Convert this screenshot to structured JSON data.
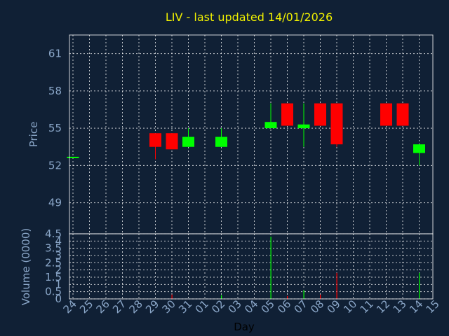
{
  "chart_data": {
    "type": "candlestick",
    "title": "LIV - last updated 14/01/2026",
    "xlabel": "Day",
    "x_ticks": [
      "24",
      "25",
      "26",
      "27",
      "28",
      "29",
      "30",
      "31",
      "01",
      "02",
      "03",
      "04",
      "05",
      "06",
      "07",
      "08",
      "09",
      "10",
      "11",
      "12",
      "13",
      "14",
      "15"
    ],
    "colors": {
      "up": "#00ff00",
      "down": "#ff0000",
      "background": "#102035",
      "title": "#f0f000",
      "axis_text": "#8aa6c8"
    },
    "price_panel": {
      "ylabel": "Price",
      "ylim": [
        46.5,
        62.5
      ],
      "yticks": [
        49,
        52,
        55,
        58,
        61
      ],
      "grid": true,
      "candles": [
        {
          "day": "24",
          "open": 52.7,
          "high": 52.7,
          "low": 52.7,
          "close": 52.7
        },
        {
          "day": "29",
          "open": 54.6,
          "high": 54.6,
          "low": 52.5,
          "close": 53.5
        },
        {
          "day": "30",
          "open": 54.6,
          "high": 54.6,
          "low": 53.3,
          "close": 53.3
        },
        {
          "day": "31",
          "open": 53.5,
          "high": 55.0,
          "low": 53.5,
          "close": 54.3
        },
        {
          "day": "02",
          "open": 53.5,
          "high": 55.0,
          "low": 53.5,
          "close": 54.3
        },
        {
          "day": "05",
          "open": 55.0,
          "high": 57.0,
          "low": 55.0,
          "close": 55.5
        },
        {
          "day": "06",
          "open": 57.0,
          "high": 57.0,
          "low": 55.2,
          "close": 55.2
        },
        {
          "day": "07",
          "open": 55.0,
          "high": 57.0,
          "low": 53.5,
          "close": 55.3
        },
        {
          "day": "08",
          "open": 57.0,
          "high": 57.0,
          "low": 55.2,
          "close": 55.2
        },
        {
          "day": "09",
          "open": 57.0,
          "high": 57.0,
          "low": 53.5,
          "close": 53.7
        },
        {
          "day": "12",
          "open": 57.0,
          "high": 57.0,
          "low": 55.2,
          "close": 55.2
        },
        {
          "day": "13",
          "open": 57.0,
          "high": 57.0,
          "low": 55.2,
          "close": 55.2
        },
        {
          "day": "14",
          "open": 53.0,
          "high": 53.7,
          "low": 52.0,
          "close": 53.7
        }
      ]
    },
    "volume_panel": {
      "ylabel": "Volume (0000)",
      "ylim": [
        0,
        4.5
      ],
      "yticks": [
        0,
        0.5,
        1,
        1.5,
        2,
        2.5,
        3,
        3.5,
        4,
        4.5
      ],
      "ytick_labels": [
        "0",
        "0.5",
        "1",
        "1.5",
        "2",
        "2.5",
        "3",
        "3.5",
        "4",
        "4.5"
      ],
      "grid": true,
      "bars": [
        {
          "day": "30",
          "value": 0.3,
          "direction": "down"
        },
        {
          "day": "02",
          "value": 0.25,
          "direction": "up"
        },
        {
          "day": "05",
          "value": 4.3,
          "direction": "up"
        },
        {
          "day": "06",
          "value": 0.2,
          "direction": "down"
        },
        {
          "day": "07",
          "value": 0.6,
          "direction": "up"
        },
        {
          "day": "08",
          "value": 0.3,
          "direction": "down"
        },
        {
          "day": "09",
          "value": 1.8,
          "direction": "down"
        },
        {
          "day": "14",
          "value": 1.8,
          "direction": "up"
        }
      ]
    }
  }
}
